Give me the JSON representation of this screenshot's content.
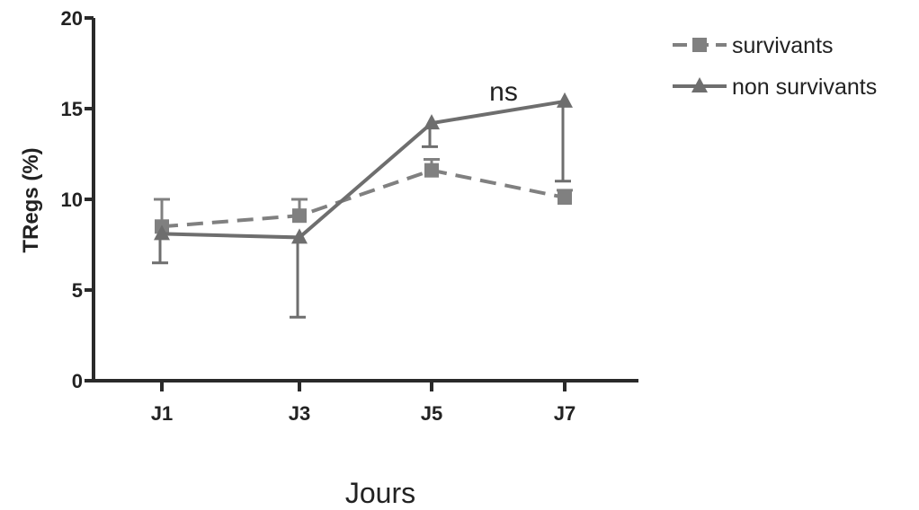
{
  "chart_data": {
    "type": "line",
    "categories": [
      "J1",
      "J3",
      "J5",
      "J7"
    ],
    "xlabel": "Jours",
    "ylabel": "TRegs (%)",
    "ylim": [
      0,
      20
    ],
    "yticks": [
      0,
      5,
      10,
      15,
      20
    ],
    "grid": false,
    "legend_position": "top-right",
    "annotation": {
      "text": "ns",
      "category": "J5",
      "y": 15.5
    },
    "series": [
      {
        "name": "survivants",
        "style": "dashed",
        "marker": "square",
        "color": "#808080",
        "values": [
          8.5,
          9.1,
          11.6,
          10.1
        ],
        "error": [
          1.5,
          0.9,
          0.6,
          0.4
        ]
      },
      {
        "name": "non survivants",
        "style": "solid",
        "marker": "triangle",
        "color": "#6e6e6e",
        "values": [
          8.1,
          7.9,
          14.2,
          15.4
        ],
        "error": [
          1.6,
          4.4,
          1.3,
          4.4
        ]
      }
    ]
  }
}
